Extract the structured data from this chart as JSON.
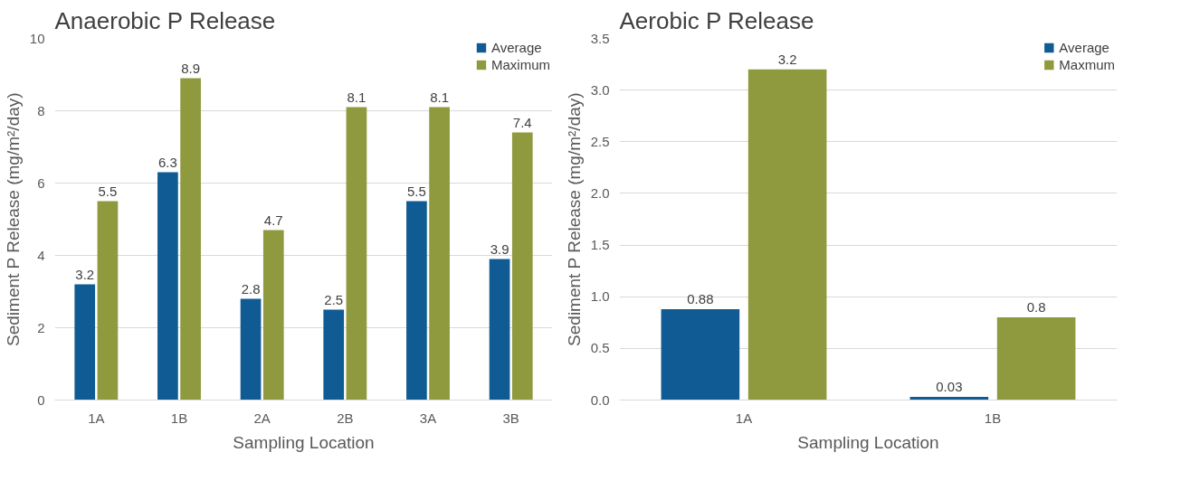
{
  "chart_data": [
    {
      "type": "bar",
      "title": "Anaerobic P Release",
      "xlabel": "Sampling Location",
      "ylabel": "Sediment P Release (mg/m²/day)",
      "categories": [
        "1A",
        "1B",
        "2A",
        "2B",
        "3A",
        "3B"
      ],
      "series": [
        {
          "name": "Average",
          "color": "#105b93",
          "values": [
            3.2,
            6.3,
            2.8,
            2.5,
            5.5,
            3.9
          ]
        },
        {
          "name": "Maximum",
          "color": "#8f993e",
          "values": [
            5.5,
            8.9,
            4.7,
            8.1,
            8.1,
            7.4
          ]
        }
      ],
      "ylim": [
        0,
        10
      ],
      "yticks": [
        0,
        2,
        4,
        6,
        8,
        10
      ],
      "grid": "y",
      "legend": "top right",
      "data_labels": true
    },
    {
      "type": "bar",
      "title": "Aerobic P Release",
      "xlabel": "Sampling Location",
      "ylabel": "Sediment P Release (mg/m²/day)",
      "categories": [
        "1A",
        "1B"
      ],
      "series": [
        {
          "name": "Average",
          "color": "#105b93",
          "values": [
            0.88,
            0.03
          ]
        },
        {
          "name": "Maxmum",
          "color": "#8f993e",
          "values": [
            3.2,
            0.8
          ]
        }
      ],
      "ylim": [
        0,
        3.5
      ],
      "yticks": [
        {
          "value": 0,
          "label": "0.0"
        },
        {
          "value": 0.5,
          "label": "0.5"
        },
        {
          "value": 1,
          "label": "1.0"
        },
        {
          "value": 1.5,
          "label": "1.5"
        },
        {
          "value": 2,
          "label": "2.0"
        },
        {
          "value": 2.5,
          "label": "2.5"
        },
        {
          "value": 3,
          "label": "3.0"
        },
        {
          "value": 3.5,
          "label": "3.5"
        }
      ],
      "grid": "y",
      "legend": "top right",
      "data_labels": true
    }
  ]
}
